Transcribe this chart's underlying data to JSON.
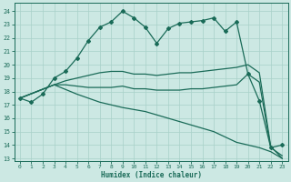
{
  "xlabel": "Humidex (Indice chaleur)",
  "bg_color": "#cce8e3",
  "grid_color": "#a8d0c8",
  "line_color": "#1a6b58",
  "xlim": [
    -0.5,
    23.5
  ],
  "ylim": [
    12.8,
    24.6
  ],
  "yticks": [
    13,
    14,
    15,
    16,
    17,
    18,
    19,
    20,
    21,
    22,
    23,
    24
  ],
  "xticks": [
    0,
    1,
    2,
    3,
    4,
    5,
    6,
    7,
    8,
    9,
    10,
    11,
    12,
    13,
    14,
    15,
    16,
    17,
    18,
    19,
    20,
    21,
    22,
    23
  ],
  "curves": [
    {
      "x": [
        0,
        1,
        2,
        3,
        4,
        5,
        6,
        7,
        8,
        9,
        10,
        11,
        12,
        13,
        14,
        15,
        16,
        17,
        18,
        19,
        20,
        21,
        22,
        23
      ],
      "y": [
        17.5,
        17.2,
        17.8,
        19.0,
        19.5,
        20.5,
        21.8,
        22.8,
        23.2,
        24.0,
        23.5,
        22.8,
        21.6,
        22.7,
        23.1,
        23.2,
        23.3,
        23.5,
        22.5,
        23.2,
        19.3,
        17.3,
        13.8,
        14.0
      ],
      "marker": "D",
      "markersize": 2.0,
      "lw": 0.9,
      "ls": "-"
    },
    {
      "x": [
        0,
        3,
        4,
        5,
        6,
        7,
        8,
        9,
        10,
        11,
        12,
        13,
        14,
        15,
        16,
        17,
        18,
        19,
        20,
        21,
        22,
        23
      ],
      "y": [
        17.5,
        18.5,
        18.8,
        19.0,
        19.2,
        19.4,
        19.5,
        19.5,
        19.3,
        19.3,
        19.2,
        19.3,
        19.4,
        19.4,
        19.5,
        19.6,
        19.7,
        19.8,
        20.0,
        19.4,
        13.9,
        13.0
      ],
      "marker": null,
      "markersize": 0,
      "lw": 0.9,
      "ls": "-"
    },
    {
      "x": [
        0,
        3,
        4,
        5,
        6,
        7,
        8,
        9,
        10,
        11,
        12,
        13,
        14,
        15,
        16,
        17,
        18,
        19,
        20,
        21,
        22,
        23
      ],
      "y": [
        17.5,
        18.5,
        18.5,
        18.4,
        18.3,
        18.3,
        18.3,
        18.4,
        18.2,
        18.2,
        18.1,
        18.1,
        18.1,
        18.2,
        18.2,
        18.3,
        18.4,
        18.5,
        19.3,
        18.7,
        13.8,
        13.2
      ],
      "marker": null,
      "markersize": 0,
      "lw": 0.9,
      "ls": "-"
    },
    {
      "x": [
        0,
        3,
        5,
        7,
        9,
        11,
        13,
        15,
        17,
        19,
        20,
        21,
        22,
        23
      ],
      "y": [
        17.5,
        18.5,
        17.8,
        17.2,
        16.8,
        16.5,
        16.0,
        15.5,
        15.0,
        14.2,
        14.0,
        13.8,
        13.5,
        13.0
      ],
      "marker": null,
      "markersize": 0,
      "lw": 0.9,
      "ls": "-"
    }
  ]
}
